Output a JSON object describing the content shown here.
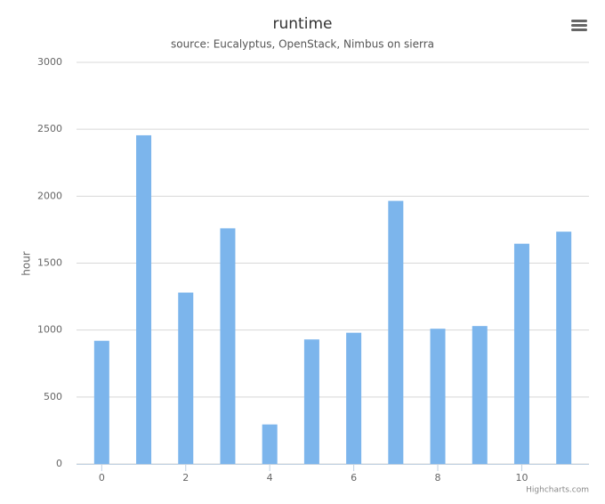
{
  "chart_data": {
    "type": "bar",
    "title": "runtime",
    "subtitle": "source: Eucalyptus, OpenStack, Nimbus on sierra",
    "y_label": "hour",
    "credits": "Highcharts.com",
    "x": [
      0,
      1,
      2,
      3,
      4,
      5,
      6,
      7,
      8,
      9,
      10,
      11
    ],
    "values": [
      920,
      2455,
      1280,
      1760,
      295,
      930,
      980,
      1965,
      1010,
      1030,
      1645,
      1735
    ],
    "color": "#7cb5ec",
    "xlim": [
      -0.6,
      11.6
    ],
    "xticks": [
      0,
      2,
      4,
      6,
      8,
      10
    ],
    "ylim": [
      0,
      3000
    ],
    "yticks": [
      0,
      500,
      1000,
      1500,
      2000,
      2500,
      3000
    ],
    "grid": true
  }
}
